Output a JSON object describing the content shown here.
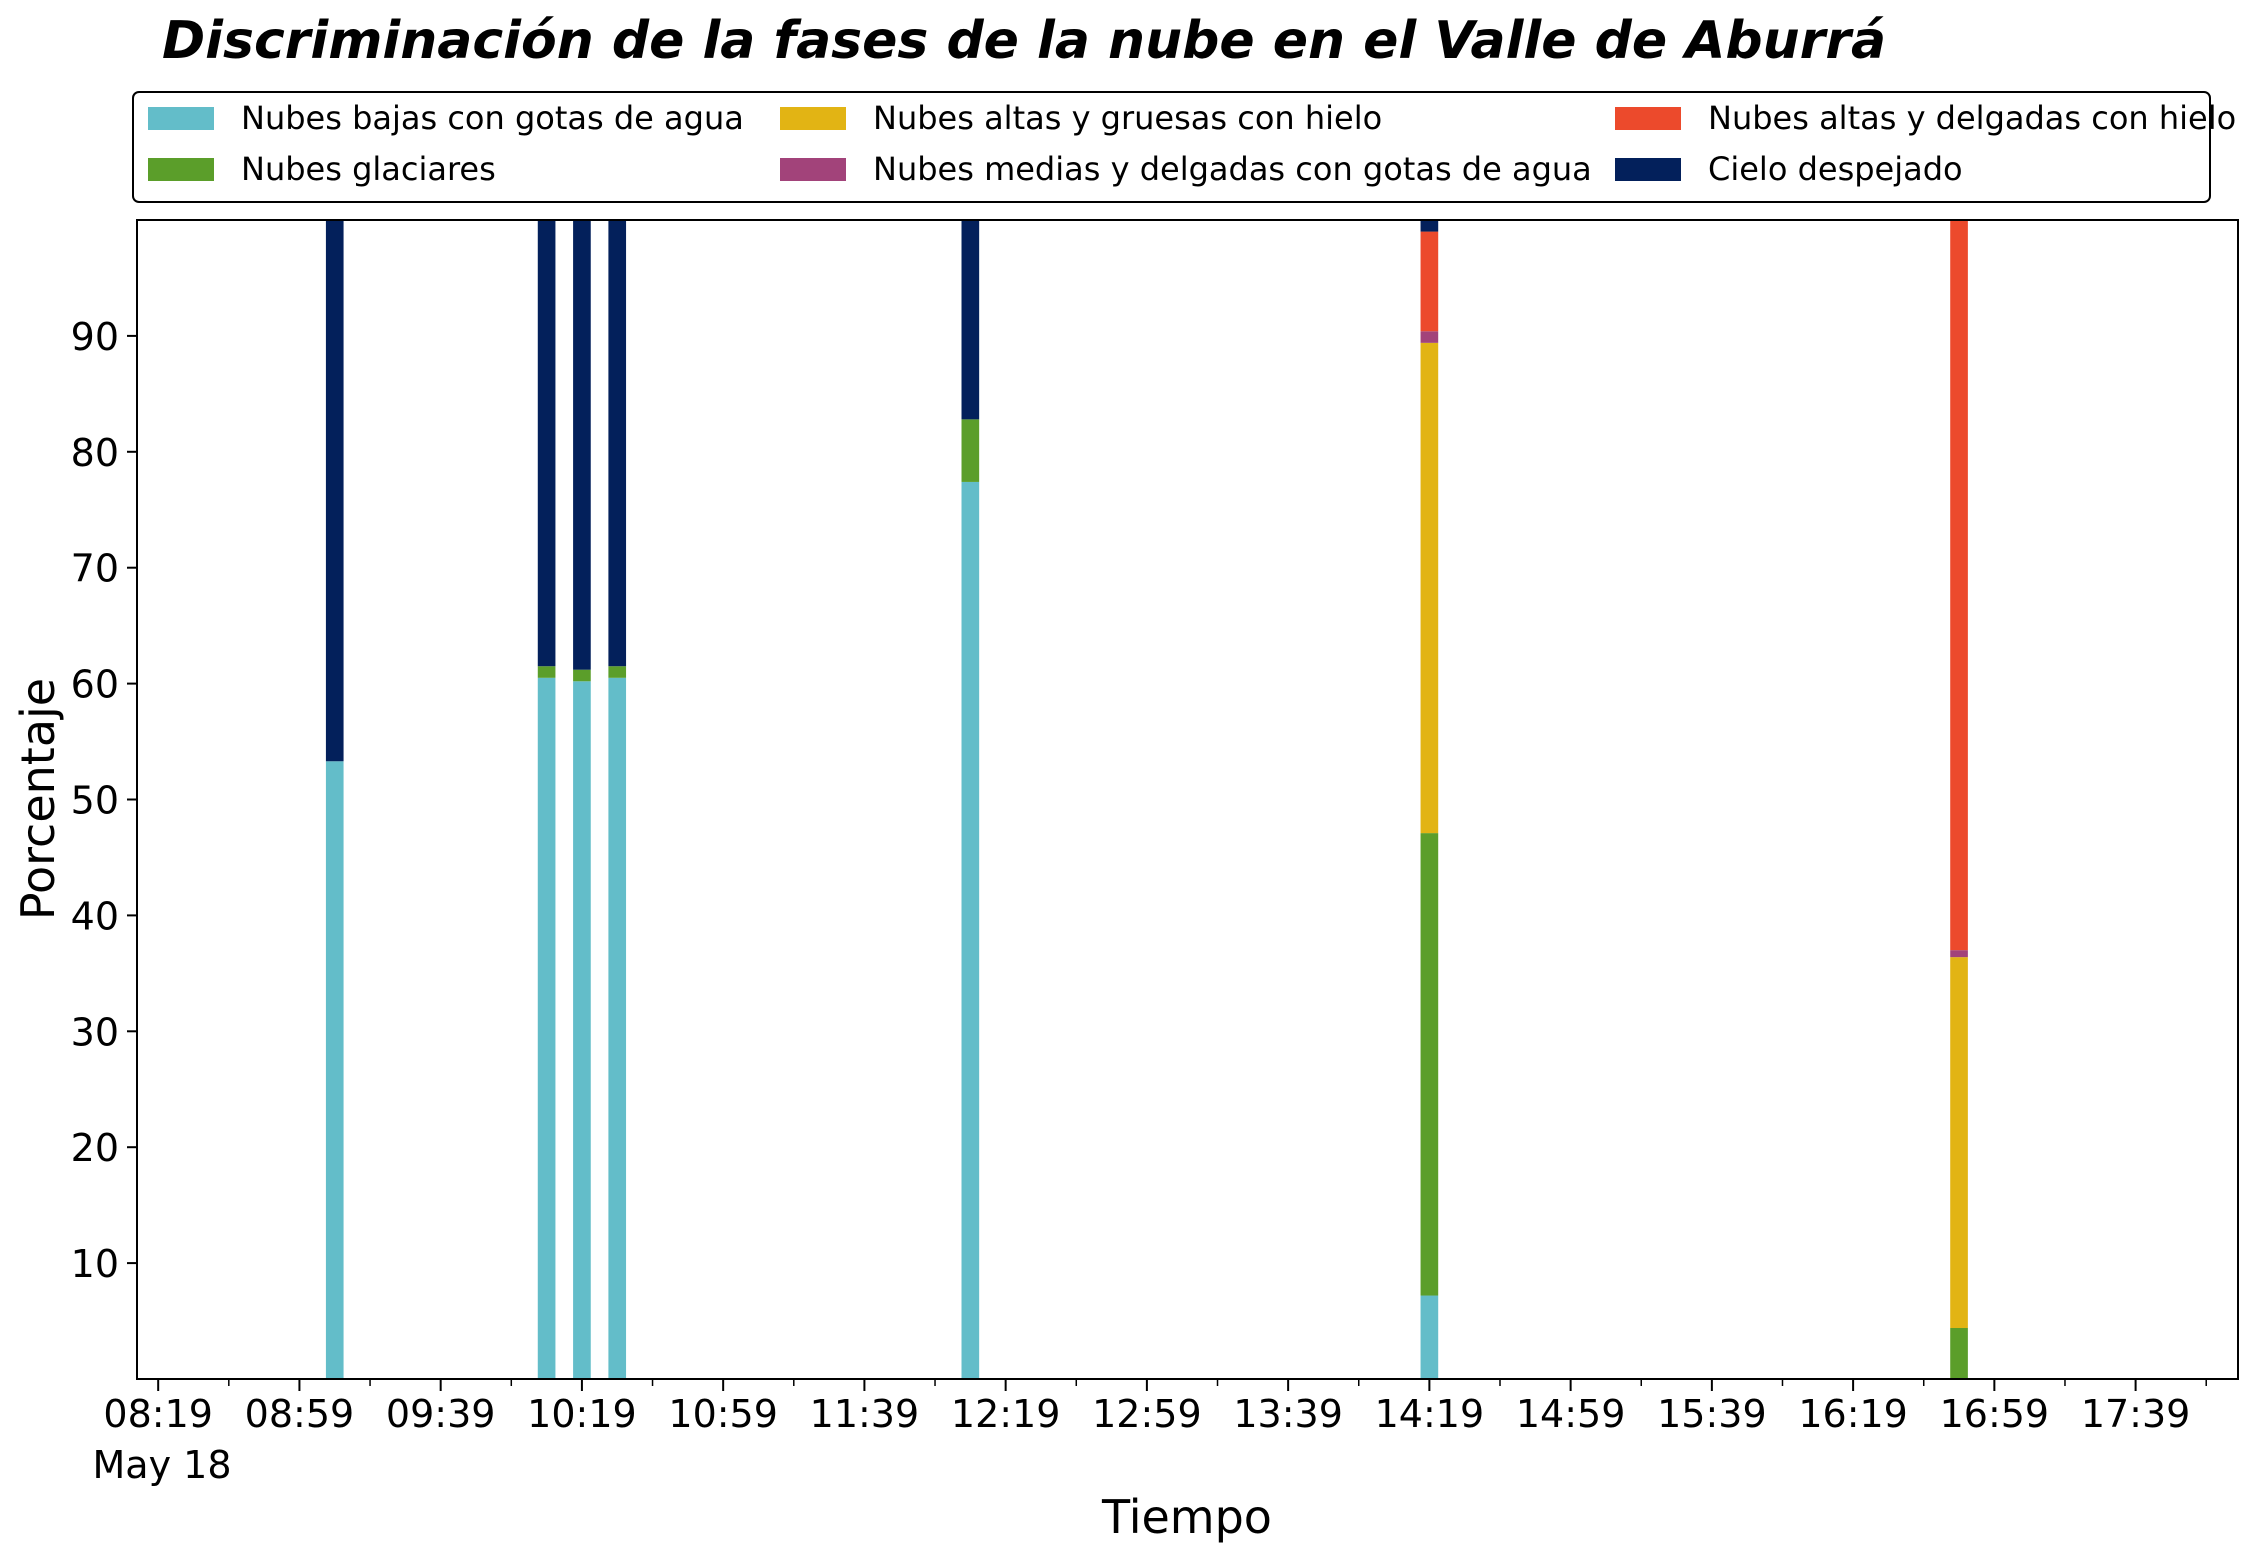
{
  "chart_data": {
    "type": "bar",
    "stacked": true,
    "title": "Discriminación de la fases de la nube en el Valle de Aburrá",
    "xlabel": "Tiempo",
    "ylabel": "Porcentaje",
    "ylim": [
      0,
      100
    ],
    "y_ticks": [
      10,
      20,
      30,
      40,
      50,
      60,
      70,
      80,
      90
    ],
    "x_ticks": [
      "08:19",
      "08:59",
      "09:39",
      "10:19",
      "10:59",
      "11:39",
      "12:19",
      "12:59",
      "13:39",
      "14:19",
      "14:59",
      "15:39",
      "16:19",
      "16:59",
      "17:39"
    ],
    "x_date_label": "May 18",
    "x_range": [
      "08:13",
      "18:08"
    ],
    "grid": false,
    "legend_position": "top",
    "bar_width_minutes": 5,
    "categories": [
      "09:09",
      "10:09",
      "10:19",
      "10:29",
      "12:09",
      "14:19",
      "16:49"
    ],
    "series": [
      {
        "name": "Nubes bajas con gotas de agua",
        "color": "#63bdc9",
        "values": [
          53.3,
          60.5,
          60.2,
          60.5,
          77.4,
          7.2,
          0
        ]
      },
      {
        "name": "Nubes glaciares",
        "color": "#5b9e2a",
        "values": [
          0,
          1.0,
          1.0,
          1.0,
          5.4,
          39.9,
          4.4
        ]
      },
      {
        "name": "Nubes altas y gruesas con hielo",
        "color": "#e2b414",
        "values": [
          0,
          0,
          0,
          0,
          0,
          42.3,
          32.0
        ]
      },
      {
        "name": "Nubes medias y delgadas con gotas de agua",
        "color": "#a2437a",
        "values": [
          0,
          0,
          0,
          0,
          0,
          1.0,
          0.6
        ]
      },
      {
        "name": "Nubes altas y delgadas con hielo",
        "color": "#ec4a2c",
        "values": [
          0,
          0,
          0,
          0,
          0,
          8.6,
          63.0
        ]
      },
      {
        "name": "Cielo despejado",
        "color": "#03205b",
        "values": [
          46.7,
          38.5,
          38.8,
          38.5,
          17.2,
          1.0,
          0
        ]
      }
    ]
  }
}
